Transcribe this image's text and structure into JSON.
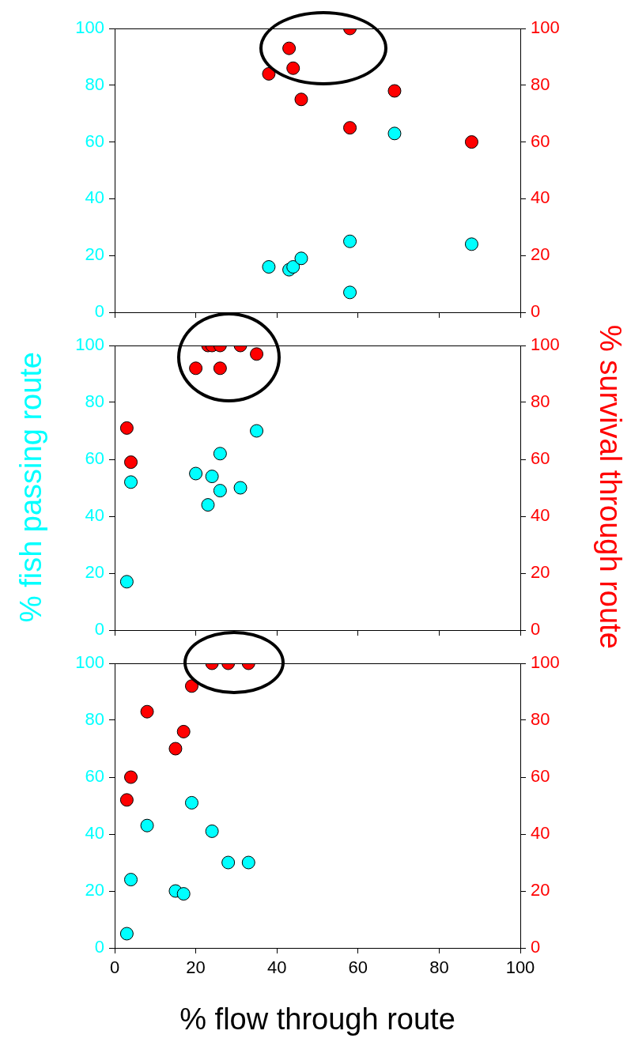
{
  "chart_data": [
    {
      "type": "scatter",
      "xlim": [
        0,
        100
      ],
      "xticks": [
        0,
        20,
        40,
        60,
        80,
        100
      ],
      "ylim": [
        0,
        100
      ],
      "yticks": [
        0,
        20,
        40,
        60,
        80,
        100
      ],
      "y2lim": [
        0,
        100
      ],
      "y2ticks": [
        0,
        20,
        40,
        60,
        80,
        100
      ],
      "tick_labels": "y",
      "marker": "circle",
      "series": [
        {
          "color": "#00ffff",
          "x": [
            38,
            43,
            44,
            46,
            58,
            58,
            69,
            88
          ],
          "values": [
            16,
            15,
            16,
            19,
            25,
            7,
            63,
            24
          ]
        },
        {
          "color": "#ff0000",
          "axis": "y2",
          "x": [
            38,
            43,
            44,
            46,
            58,
            58,
            69,
            88
          ],
          "values": [
            84,
            93,
            86,
            75,
            100,
            65,
            78,
            60
          ]
        }
      ]
    },
    {
      "type": "scatter",
      "ylabel": "% fish passing route",
      "y2label": "% survival through route",
      "xlim": [
        0,
        100
      ],
      "xticks": [
        0,
        20,
        40,
        60,
        80,
        100
      ],
      "ylim": [
        0,
        100
      ],
      "yticks": [
        0,
        20,
        40,
        60,
        80,
        100
      ],
      "y2lim": [
        0,
        100
      ],
      "y2ticks": [
        0,
        20,
        40,
        60,
        80,
        100
      ],
      "tick_labels": "y",
      "marker": "circle",
      "series": [
        {
          "color": "#00ffff",
          "x": [
            3,
            4,
            20,
            23,
            24,
            26,
            26,
            31,
            35
          ],
          "values": [
            17,
            52,
            55,
            44,
            54,
            62,
            49,
            50,
            70
          ]
        },
        {
          "color": "#ff0000",
          "axis": "y2",
          "x": [
            3,
            4,
            20,
            23,
            24,
            26,
            26,
            31,
            35
          ],
          "values": [
            71,
            59,
            92,
            100,
            100,
            100,
            92,
            100,
            97
          ]
        }
      ]
    },
    {
      "type": "scatter",
      "xlabel": "% flow through route",
      "xlim": [
        0,
        100
      ],
      "xticks": [
        0,
        20,
        40,
        60,
        80,
        100
      ],
      "ylim": [
        0,
        100
      ],
      "yticks": [
        0,
        20,
        40,
        60,
        80,
        100
      ],
      "y2lim": [
        0,
        100
      ],
      "y2ticks": [
        0,
        20,
        40,
        60,
        80,
        100
      ],
      "marker": "circle",
      "series": [
        {
          "color": "#00ffff",
          "x": [
            3,
            4,
            8,
            15,
            17,
            19,
            24,
            28,
            33
          ],
          "values": [
            5,
            24,
            43,
            20,
            19,
            51,
            41,
            30,
            30
          ]
        },
        {
          "color": "#ff0000",
          "axis": "y2",
          "x": [
            3,
            4,
            8,
            15,
            17,
            19,
            24,
            28,
            33
          ],
          "values": [
            52,
            60,
            83,
            70,
            76,
            92,
            100,
            100,
            100
          ]
        }
      ]
    }
  ]
}
